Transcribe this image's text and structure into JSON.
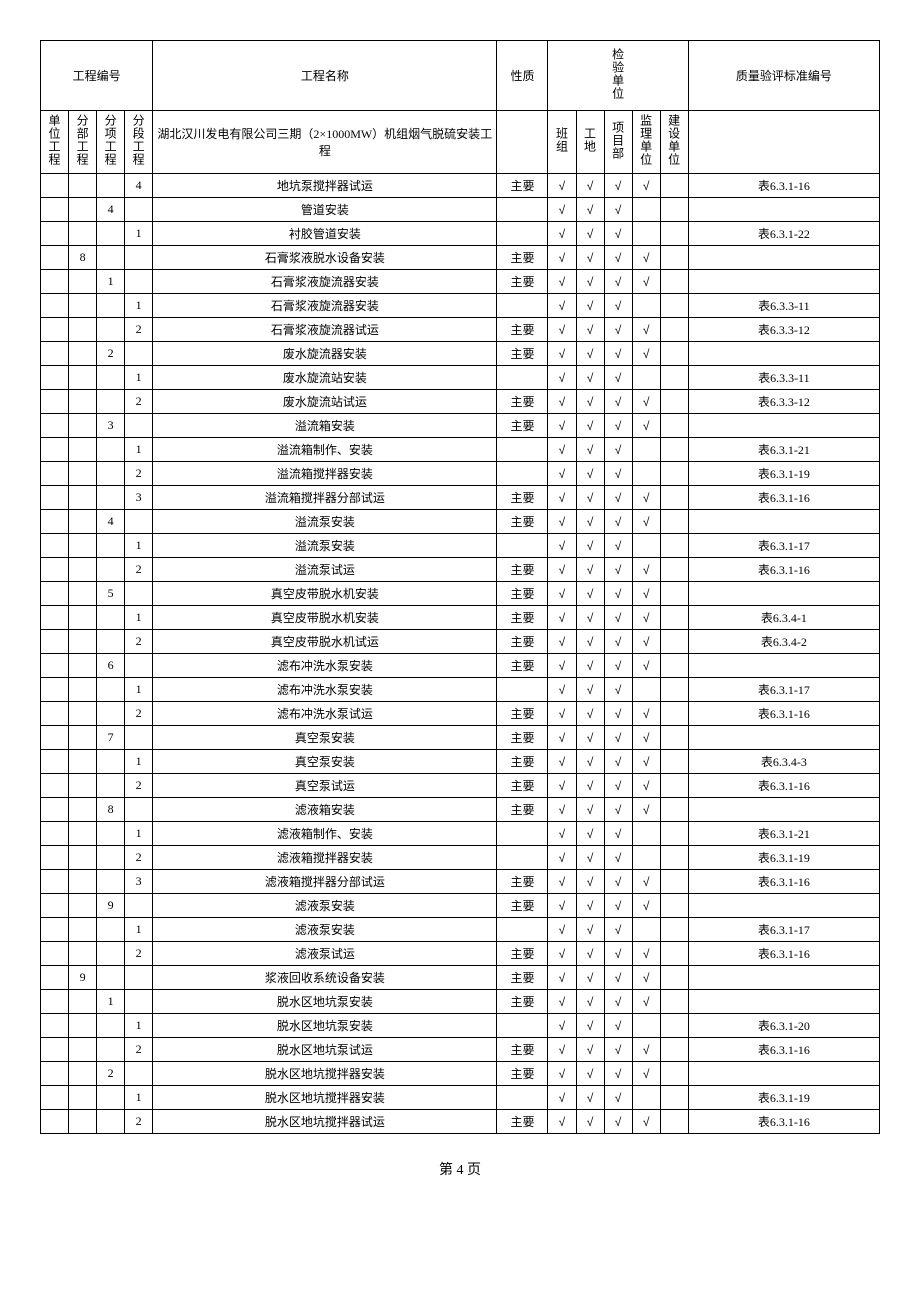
{
  "headers": {
    "col1": "工程编号",
    "col2": "工程名称",
    "col3": "性质",
    "col4": "检验单位",
    "col5": "质量验评标准编号",
    "sub1": "单位工程",
    "sub2": "分部工程",
    "sub3": "分项工程",
    "sub4": "分段工程",
    "sub5": "湖北汉川发电有限公司三期（2×1000MW）机组烟气脱硫安装工程",
    "sub6": "班组",
    "sub7": "工地",
    "sub8": "项目部",
    "sub9": "监理单位",
    "sub10": "建设单位"
  },
  "check_symbol": "√",
  "rows": [
    {
      "c1": "",
      "c2": "",
      "c3": "",
      "c4": "4",
      "name": "地坑泵搅拌器试运",
      "nature": "主要",
      "chk": [
        1,
        1,
        1,
        1,
        0
      ],
      "std": "表6.3.1-16"
    },
    {
      "c1": "",
      "c2": "",
      "c3": "4",
      "c4": "",
      "name": "管道安装",
      "nature": "",
      "chk": [
        1,
        1,
        1,
        0,
        0
      ],
      "std": ""
    },
    {
      "c1": "",
      "c2": "",
      "c3": "",
      "c4": "1",
      "name": "衬胶管道安装",
      "nature": "",
      "chk": [
        1,
        1,
        1,
        0,
        0
      ],
      "std": "表6.3.1-22"
    },
    {
      "c1": "",
      "c2": "8",
      "c3": "",
      "c4": "",
      "name": "石膏浆液脱水设备安装",
      "nature": "主要",
      "chk": [
        1,
        1,
        1,
        1,
        0
      ],
      "std": ""
    },
    {
      "c1": "",
      "c2": "",
      "c3": "1",
      "c4": "",
      "name": "石膏浆液旋流器安装",
      "nature": "主要",
      "chk": [
        1,
        1,
        1,
        1,
        0
      ],
      "std": ""
    },
    {
      "c1": "",
      "c2": "",
      "c3": "",
      "c4": "1",
      "name": "石膏浆液旋流器安装",
      "nature": "",
      "chk": [
        1,
        1,
        1,
        0,
        0
      ],
      "std": "表6.3.3-11"
    },
    {
      "c1": "",
      "c2": "",
      "c3": "",
      "c4": "2",
      "name": "石膏浆液旋流器试运",
      "nature": "主要",
      "chk": [
        1,
        1,
        1,
        1,
        0
      ],
      "std": "表6.3.3-12"
    },
    {
      "c1": "",
      "c2": "",
      "c3": "2",
      "c4": "",
      "name": "废水旋流器安装",
      "nature": "主要",
      "chk": [
        1,
        1,
        1,
        1,
        0
      ],
      "std": ""
    },
    {
      "c1": "",
      "c2": "",
      "c3": "",
      "c4": "1",
      "name": "废水旋流站安装",
      "nature": "",
      "chk": [
        1,
        1,
        1,
        0,
        0
      ],
      "std": "表6.3.3-11"
    },
    {
      "c1": "",
      "c2": "",
      "c3": "",
      "c4": "2",
      "name": "废水旋流站试运",
      "nature": "主要",
      "chk": [
        1,
        1,
        1,
        1,
        0
      ],
      "std": "表6.3.3-12"
    },
    {
      "c1": "",
      "c2": "",
      "c3": "3",
      "c4": "",
      "name": "溢流箱安装",
      "nature": "主要",
      "chk": [
        1,
        1,
        1,
        1,
        0
      ],
      "std": ""
    },
    {
      "c1": "",
      "c2": "",
      "c3": "",
      "c4": "1",
      "name": "溢流箱制作、安装",
      "nature": "",
      "chk": [
        1,
        1,
        1,
        0,
        0
      ],
      "std": "表6.3.1-21"
    },
    {
      "c1": "",
      "c2": "",
      "c3": "",
      "c4": "2",
      "name": "溢流箱搅拌器安装",
      "nature": "",
      "chk": [
        1,
        1,
        1,
        0,
        0
      ],
      "std": "表6.3.1-19"
    },
    {
      "c1": "",
      "c2": "",
      "c3": "",
      "c4": "3",
      "name": "溢流箱搅拌器分部试运",
      "nature": "主要",
      "chk": [
        1,
        1,
        1,
        1,
        0
      ],
      "std": "表6.3.1-16"
    },
    {
      "c1": "",
      "c2": "",
      "c3": "4",
      "c4": "",
      "name": "溢流泵安装",
      "nature": "主要",
      "chk": [
        1,
        1,
        1,
        1,
        0
      ],
      "std": ""
    },
    {
      "c1": "",
      "c2": "",
      "c3": "",
      "c4": "1",
      "name": "溢流泵安装",
      "nature": "",
      "chk": [
        1,
        1,
        1,
        0,
        0
      ],
      "std": "表6.3.1-17"
    },
    {
      "c1": "",
      "c2": "",
      "c3": "",
      "c4": "2",
      "name": "溢流泵试运",
      "nature": "主要",
      "chk": [
        1,
        1,
        1,
        1,
        0
      ],
      "std": "表6.3.1-16"
    },
    {
      "c1": "",
      "c2": "",
      "c3": "5",
      "c4": "",
      "name": "真空皮带脱水机安装",
      "nature": "主要",
      "chk": [
        1,
        1,
        1,
        1,
        0
      ],
      "std": ""
    },
    {
      "c1": "",
      "c2": "",
      "c3": "",
      "c4": "1",
      "name": "真空皮带脱水机安装",
      "nature": "主要",
      "chk": [
        1,
        1,
        1,
        1,
        0
      ],
      "std": "表6.3.4-1"
    },
    {
      "c1": "",
      "c2": "",
      "c3": "",
      "c4": "2",
      "name": "真空皮带脱水机试运",
      "nature": "主要",
      "chk": [
        1,
        1,
        1,
        1,
        0
      ],
      "std": "表6.3.4-2"
    },
    {
      "c1": "",
      "c2": "",
      "c3": "6",
      "c4": "",
      "name": "滤布冲洗水泵安装",
      "nature": "主要",
      "chk": [
        1,
        1,
        1,
        1,
        0
      ],
      "std": ""
    },
    {
      "c1": "",
      "c2": "",
      "c3": "",
      "c4": "1",
      "name": "滤布冲洗水泵安装",
      "nature": "",
      "chk": [
        1,
        1,
        1,
        0,
        0
      ],
      "std": "表6.3.1-17"
    },
    {
      "c1": "",
      "c2": "",
      "c3": "",
      "c4": "2",
      "name": "滤布冲洗水泵试运",
      "nature": "主要",
      "chk": [
        1,
        1,
        1,
        1,
        0
      ],
      "std": "表6.3.1-16"
    },
    {
      "c1": "",
      "c2": "",
      "c3": "7",
      "c4": "",
      "name": "真空泵安装",
      "nature": "主要",
      "chk": [
        1,
        1,
        1,
        1,
        0
      ],
      "std": ""
    },
    {
      "c1": "",
      "c2": "",
      "c3": "",
      "c4": "1",
      "name": "真空泵安装",
      "nature": "主要",
      "chk": [
        1,
        1,
        1,
        1,
        0
      ],
      "std": "表6.3.4-3"
    },
    {
      "c1": "",
      "c2": "",
      "c3": "",
      "c4": "2",
      "name": "真空泵试运",
      "nature": "主要",
      "chk": [
        1,
        1,
        1,
        1,
        0
      ],
      "std": "表6.3.1-16"
    },
    {
      "c1": "",
      "c2": "",
      "c3": "8",
      "c4": "",
      "name": "滤液箱安装",
      "nature": "主要",
      "chk": [
        1,
        1,
        1,
        1,
        0
      ],
      "std": ""
    },
    {
      "c1": "",
      "c2": "",
      "c3": "",
      "c4": "1",
      "name": "滤液箱制作、安装",
      "nature": "",
      "chk": [
        1,
        1,
        1,
        0,
        0
      ],
      "std": "表6.3.1-21"
    },
    {
      "c1": "",
      "c2": "",
      "c3": "",
      "c4": "2",
      "name": "滤液箱搅拌器安装",
      "nature": "",
      "chk": [
        1,
        1,
        1,
        0,
        0
      ],
      "std": "表6.3.1-19"
    },
    {
      "c1": "",
      "c2": "",
      "c3": "",
      "c4": "3",
      "name": "滤液箱搅拌器分部试运",
      "nature": "主要",
      "chk": [
        1,
        1,
        1,
        1,
        0
      ],
      "std": "表6.3.1-16"
    },
    {
      "c1": "",
      "c2": "",
      "c3": "9",
      "c4": "",
      "name": "滤液泵安装",
      "nature": "主要",
      "chk": [
        1,
        1,
        1,
        1,
        0
      ],
      "std": ""
    },
    {
      "c1": "",
      "c2": "",
      "c3": "",
      "c4": "1",
      "name": "滤液泵安装",
      "nature": "",
      "chk": [
        1,
        1,
        1,
        0,
        0
      ],
      "std": "表6.3.1-17"
    },
    {
      "c1": "",
      "c2": "",
      "c3": "",
      "c4": "2",
      "name": "滤液泵试运",
      "nature": "主要",
      "chk": [
        1,
        1,
        1,
        1,
        0
      ],
      "std": "表6.3.1-16"
    },
    {
      "c1": "",
      "c2": "9",
      "c3": "",
      "c4": "",
      "name": "浆液回收系统设备安装",
      "nature": "主要",
      "chk": [
        1,
        1,
        1,
        1,
        0
      ],
      "std": ""
    },
    {
      "c1": "",
      "c2": "",
      "c3": "1",
      "c4": "",
      "name": "脱水区地坑泵安装",
      "nature": "主要",
      "chk": [
        1,
        1,
        1,
        1,
        0
      ],
      "std": ""
    },
    {
      "c1": "",
      "c2": "",
      "c3": "",
      "c4": "1",
      "name": "脱水区地坑泵安装",
      "nature": "",
      "chk": [
        1,
        1,
        1,
        0,
        0
      ],
      "std": "表6.3.1-20"
    },
    {
      "c1": "",
      "c2": "",
      "c3": "",
      "c4": "2",
      "name": "脱水区地坑泵试运",
      "nature": "主要",
      "chk": [
        1,
        1,
        1,
        1,
        0
      ],
      "std": "表6.3.1-16"
    },
    {
      "c1": "",
      "c2": "",
      "c3": "2",
      "c4": "",
      "name": "脱水区地坑搅拌器安装",
      "nature": "主要",
      "chk": [
        1,
        1,
        1,
        1,
        0
      ],
      "std": ""
    },
    {
      "c1": "",
      "c2": "",
      "c3": "",
      "c4": "1",
      "name": "脱水区地坑搅拌器安装",
      "nature": "",
      "chk": [
        1,
        1,
        1,
        0,
        0
      ],
      "std": "表6.3.1-19"
    },
    {
      "c1": "",
      "c2": "",
      "c3": "",
      "c4": "2",
      "name": "脱水区地坑搅拌器试运",
      "nature": "主要",
      "chk": [
        1,
        1,
        1,
        1,
        0
      ],
      "std": "表6.3.1-16"
    }
  ],
  "page_number": "第 4 页"
}
